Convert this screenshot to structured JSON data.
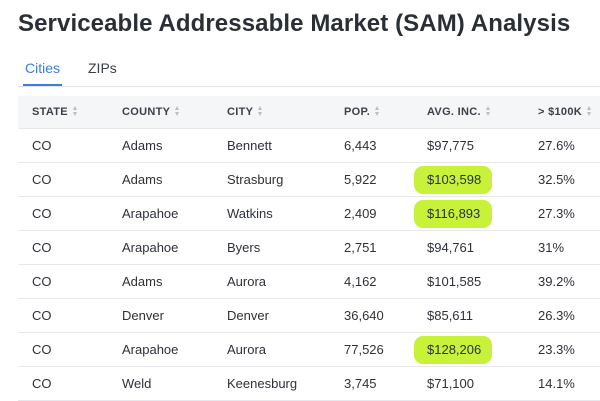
{
  "title": "Serviceable Addressable Market (SAM) Analysis",
  "tabs": [
    {
      "label": "Cities",
      "active": true
    },
    {
      "label": "ZIPs",
      "active": false
    }
  ],
  "highlight_color": "#c8f23a",
  "accent_color": "#3b7dd8",
  "columns": [
    "STATE",
    "COUNTY",
    "CITY",
    "POP.",
    "AVG. INC.",
    "> $100K"
  ],
  "rows": [
    {
      "state": "CO",
      "county": "Adams",
      "city": "Bennett",
      "pop": "6,443",
      "avg_inc": "$97,775",
      "over_100k": "27.6%",
      "highlighted": false
    },
    {
      "state": "CO",
      "county": "Adams",
      "city": "Strasburg",
      "pop": "5,922",
      "avg_inc": "$103,598",
      "over_100k": "32.5%",
      "highlighted": true
    },
    {
      "state": "CO",
      "county": "Arapahoe",
      "city": "Watkins",
      "pop": "2,409",
      "avg_inc": "$116,893",
      "over_100k": "27.3%",
      "highlighted": true
    },
    {
      "state": "CO",
      "county": "Arapahoe",
      "city": "Byers",
      "pop": "2,751",
      "avg_inc": "$94,761",
      "over_100k": "31%",
      "highlighted": false
    },
    {
      "state": "CO",
      "county": "Adams",
      "city": "Aurora",
      "pop": "4,162",
      "avg_inc": "$101,585",
      "over_100k": "39.2%",
      "highlighted": false
    },
    {
      "state": "CO",
      "county": "Denver",
      "city": "Denver",
      "pop": "36,640",
      "avg_inc": "$85,611",
      "over_100k": "26.3%",
      "highlighted": false
    },
    {
      "state": "CO",
      "county": "Arapahoe",
      "city": "Aurora",
      "pop": "77,526",
      "avg_inc": "$128,206",
      "over_100k": "23.3%",
      "highlighted": true
    },
    {
      "state": "CO",
      "county": "Weld",
      "city": "Keenesburg",
      "pop": "3,745",
      "avg_inc": "$71,100",
      "over_100k": "14.1%",
      "highlighted": false
    }
  ]
}
